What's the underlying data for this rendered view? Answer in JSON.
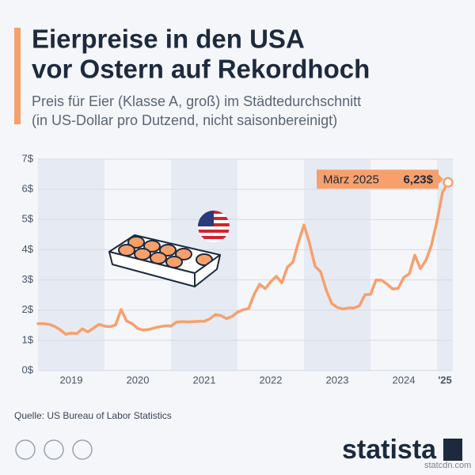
{
  "chart_data": {
    "type": "line",
    "title": [
      "Eierpreise in den USA",
      "vor Ostern auf Rekordhoch"
    ],
    "subtitle": [
      "Preis für Eier (Klasse A, groß) im Städtedurchschnitt",
      "(in US-Dollar pro Dutzend, nicht saisonbereinigt)"
    ],
    "source": "Quelle: US Bureau of Labor Statistics",
    "brand": "statista",
    "watermark": "statcdn.com",
    "x": [
      "2019-01",
      "2019-02",
      "2019-03",
      "2019-04",
      "2019-05",
      "2019-06",
      "2019-07",
      "2019-08",
      "2019-09",
      "2019-10",
      "2019-11",
      "2019-12",
      "2020-01",
      "2020-02",
      "2020-03",
      "2020-04",
      "2020-05",
      "2020-06",
      "2020-07",
      "2020-08",
      "2020-09",
      "2020-10",
      "2020-11",
      "2020-12",
      "2021-01",
      "2021-02",
      "2021-03",
      "2021-04",
      "2021-05",
      "2021-06",
      "2021-07",
      "2021-08",
      "2021-09",
      "2021-10",
      "2021-11",
      "2021-12",
      "2022-01",
      "2022-02",
      "2022-03",
      "2022-04",
      "2022-05",
      "2022-06",
      "2022-07",
      "2022-08",
      "2022-09",
      "2022-10",
      "2022-11",
      "2022-12",
      "2023-01",
      "2023-02",
      "2023-03",
      "2023-04",
      "2023-05",
      "2023-06",
      "2023-07",
      "2023-08",
      "2023-09",
      "2023-10",
      "2023-11",
      "2023-12",
      "2024-01",
      "2024-02",
      "2024-03",
      "2024-04",
      "2024-05",
      "2024-06",
      "2024-07",
      "2024-08",
      "2024-09",
      "2024-10",
      "2024-11",
      "2024-12",
      "2025-01",
      "2025-02",
      "2025-03"
    ],
    "year_labels": [
      "2019",
      "2020",
      "2021",
      "2022",
      "2023",
      "2024",
      "'25"
    ],
    "series": [
      {
        "name": "Eierpreis",
        "color": "#f7a06c",
        "values": [
          1.55,
          1.55,
          1.53,
          1.46,
          1.35,
          1.2,
          1.24,
          1.22,
          1.38,
          1.28,
          1.4,
          1.53,
          1.47,
          1.45,
          1.51,
          2.02,
          1.64,
          1.55,
          1.39,
          1.34,
          1.36,
          1.41,
          1.45,
          1.48,
          1.47,
          1.6,
          1.62,
          1.61,
          1.62,
          1.63,
          1.63,
          1.71,
          1.85,
          1.82,
          1.72,
          1.79,
          1.93,
          2.01,
          2.05,
          2.52,
          2.86,
          2.71,
          2.94,
          3.12,
          2.9,
          3.42,
          3.59,
          4.25,
          4.82,
          4.21,
          3.45,
          3.27,
          2.67,
          2.22,
          2.09,
          2.04,
          2.07,
          2.07,
          2.14,
          2.51,
          2.52,
          3.0,
          2.99,
          2.86,
          2.7,
          2.72,
          3.08,
          3.2,
          3.82,
          3.37,
          3.65,
          4.15,
          4.95,
          5.9,
          6.23
        ],
        "value_labels": [
          null,
          null,
          null,
          null,
          null,
          null,
          null,
          null,
          null,
          null,
          null,
          null,
          null,
          null,
          null,
          null,
          null,
          null,
          null,
          null,
          null,
          null,
          null,
          null,
          null,
          null,
          null,
          null,
          null,
          null,
          null,
          null,
          null,
          null,
          null,
          null,
          null,
          null,
          null,
          null,
          null,
          null,
          null,
          null,
          null,
          null,
          null,
          null,
          null,
          null,
          null,
          null,
          null,
          null,
          null,
          null,
          null,
          null,
          null,
          null,
          null,
          null,
          null,
          null,
          null,
          null,
          null,
          null,
          null,
          null,
          null,
          null,
          null,
          null,
          "6,23$"
        ]
      }
    ],
    "annotation": "März 2025",
    "ylim": [
      0,
      7
    ],
    "yticks": [
      {
        "value": 0,
        "label": "0$"
      },
      {
        "value": 1,
        "label": "1$"
      },
      {
        "value": 2,
        "label": "2$"
      },
      {
        "value": 3,
        "label": "3$"
      },
      {
        "value": 4,
        "label": "4$"
      },
      {
        "value": 5,
        "label": "5$"
      },
      {
        "value": 6,
        "label": "6$"
      },
      {
        "value": 7,
        "label": "7$"
      }
    ],
    "grid": true
  }
}
